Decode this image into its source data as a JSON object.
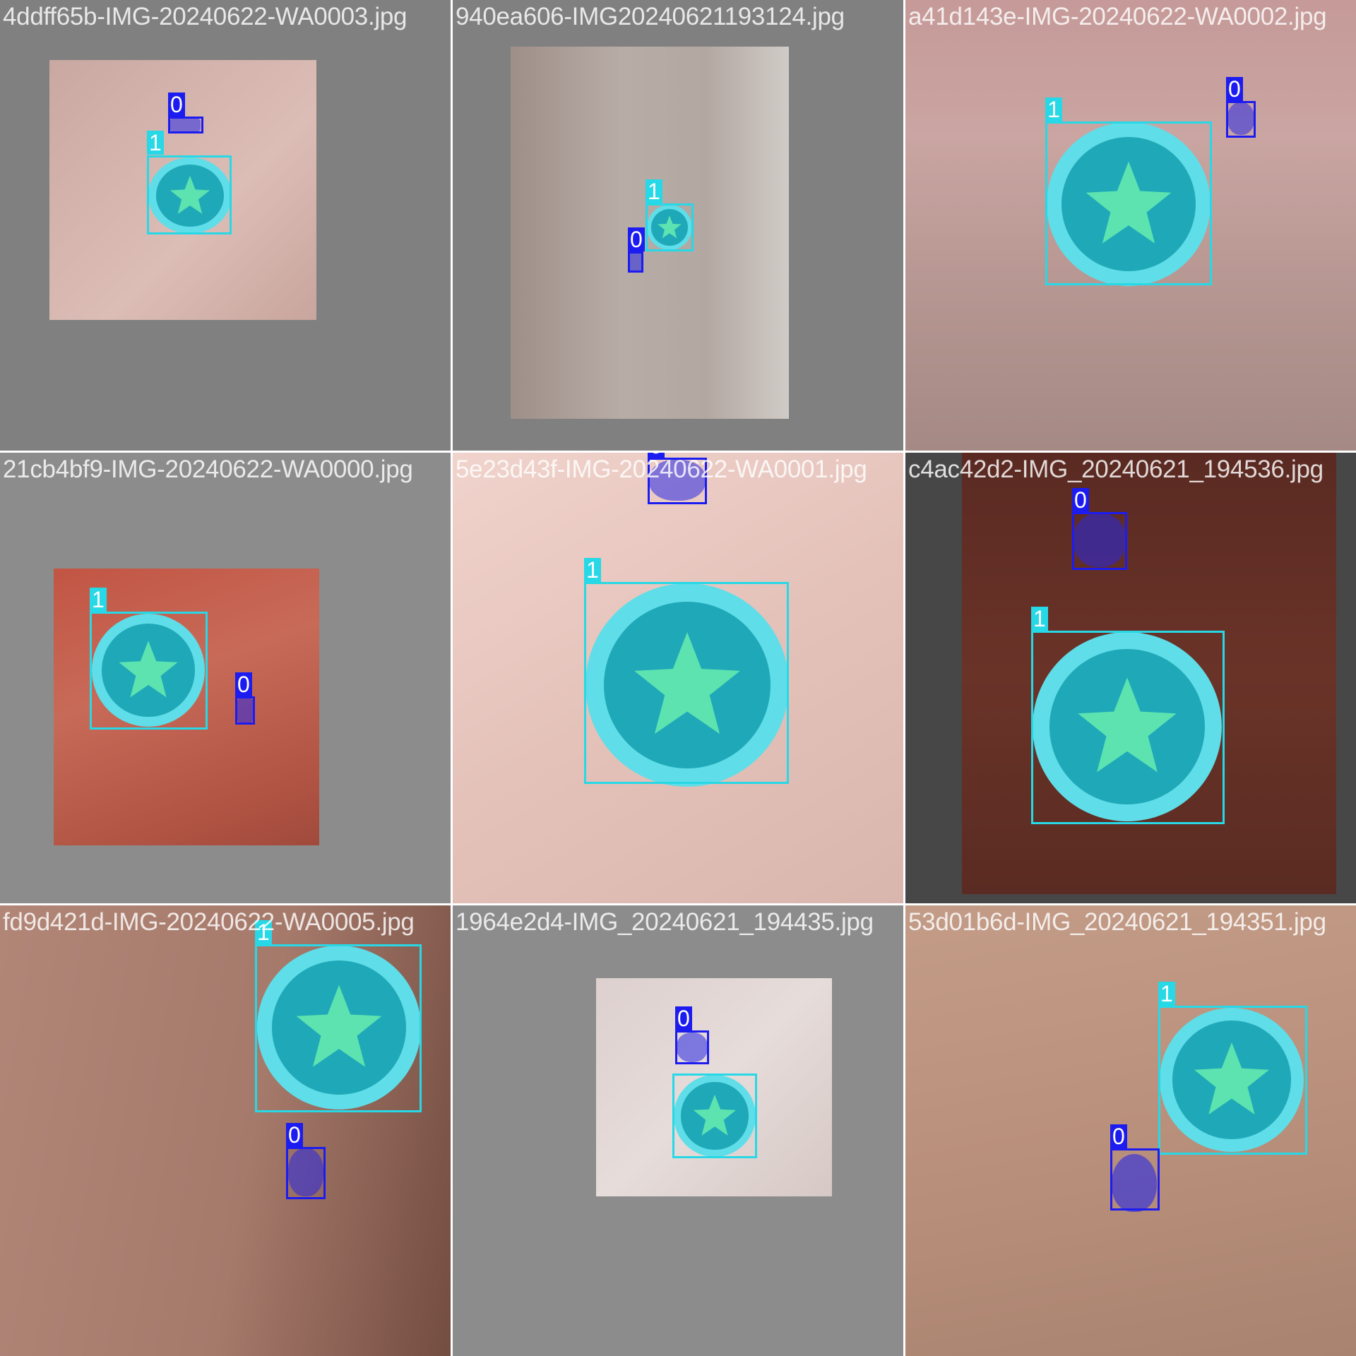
{
  "classes": {
    "hole": {
      "label": "0",
      "color": "#1c1cf0",
      "mask_color": "rgba(40,40,230,0.55)"
    },
    "sticker": {
      "label": "1",
      "color": "#27d8e6",
      "sticker_outer": "#5fdde8",
      "sticker_inner": "#1fa9b8",
      "star_color": "#5ce3b0"
    }
  },
  "tiles": [
    {
      "filename": "4ddff65b-IMG-20240622-WA0003.jpg",
      "background": "gray",
      "skin": "pale pink"
    },
    {
      "filename": "940ea606-IMG20240621193124.jpg",
      "background": "gray",
      "skin": "hairy gray"
    },
    {
      "filename": "a41d143e-IMG-20240622-WA0002.jpg",
      "background": "none",
      "skin": "pink hairy"
    },
    {
      "filename": "21cb4bf9-IMG-20240622-WA0000.jpg",
      "background": "gray",
      "skin": "red"
    },
    {
      "filename": "5e23d43f-IMG-20240622-WA0001.jpg",
      "background": "none",
      "skin": "pale hairy"
    },
    {
      "filename": "c4ac42d2-IMG_20240621_194536.jpg",
      "background": "dark gray",
      "skin": "dark brown"
    },
    {
      "filename": "fd9d421d-IMG-20240622-WA0005.jpg",
      "background": "none",
      "skin": "brown"
    },
    {
      "filename": "1964e2d4-IMG_20240621_194435.jpg",
      "background": "gray",
      "skin": "pale"
    },
    {
      "filename": "53d01b6d-IMG_20240621_194351.jpg",
      "background": "none",
      "skin": "tan hairy"
    }
  ]
}
